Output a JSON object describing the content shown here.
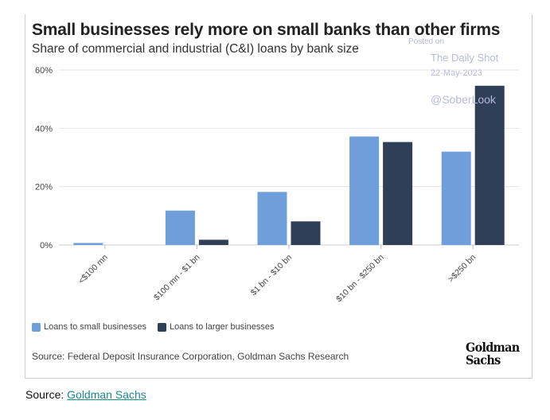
{
  "chart_data": {
    "type": "bar",
    "title": "Small businesses rely more on small banks than other firms",
    "subtitle": "Share of commercial and industrial (C&I) loans by bank size",
    "categories": [
      "<$100 mn",
      "$100 mn - $1 bn",
      "$1 bn - $10 bn",
      "$10 bn - $250 bn",
      ">$250 bn"
    ],
    "series": [
      {
        "name": "Loans to small businesses",
        "color": "#6f9fdb",
        "values": [
          0.7,
          11.8,
          18.2,
          37.2,
          32.0
        ]
      },
      {
        "name": "Loans to larger businesses",
        "color": "#2e3f57",
        "values": [
          0,
          1.8,
          8.1,
          35.3,
          54.6
        ]
      }
    ],
    "yticks": [
      "0%",
      "20%",
      "40%",
      "60%"
    ],
    "ytick_values": [
      0,
      20,
      40,
      60
    ],
    "ylim": [
      0,
      60
    ],
    "grid": true,
    "legend_placement": "bottom-left",
    "source": "Source: Federal Deposit Insurance Corporation, Goldman Sachs Research"
  },
  "watermark": {
    "posted": "Posted on",
    "site": "The Daily Shot",
    "date": "22-May-2023",
    "handle": "@SoberLook"
  },
  "logo": {
    "line1": "Goldman",
    "line2": "Sachs"
  },
  "footer": {
    "label": "Source:",
    "link": "Goldman Sachs"
  }
}
